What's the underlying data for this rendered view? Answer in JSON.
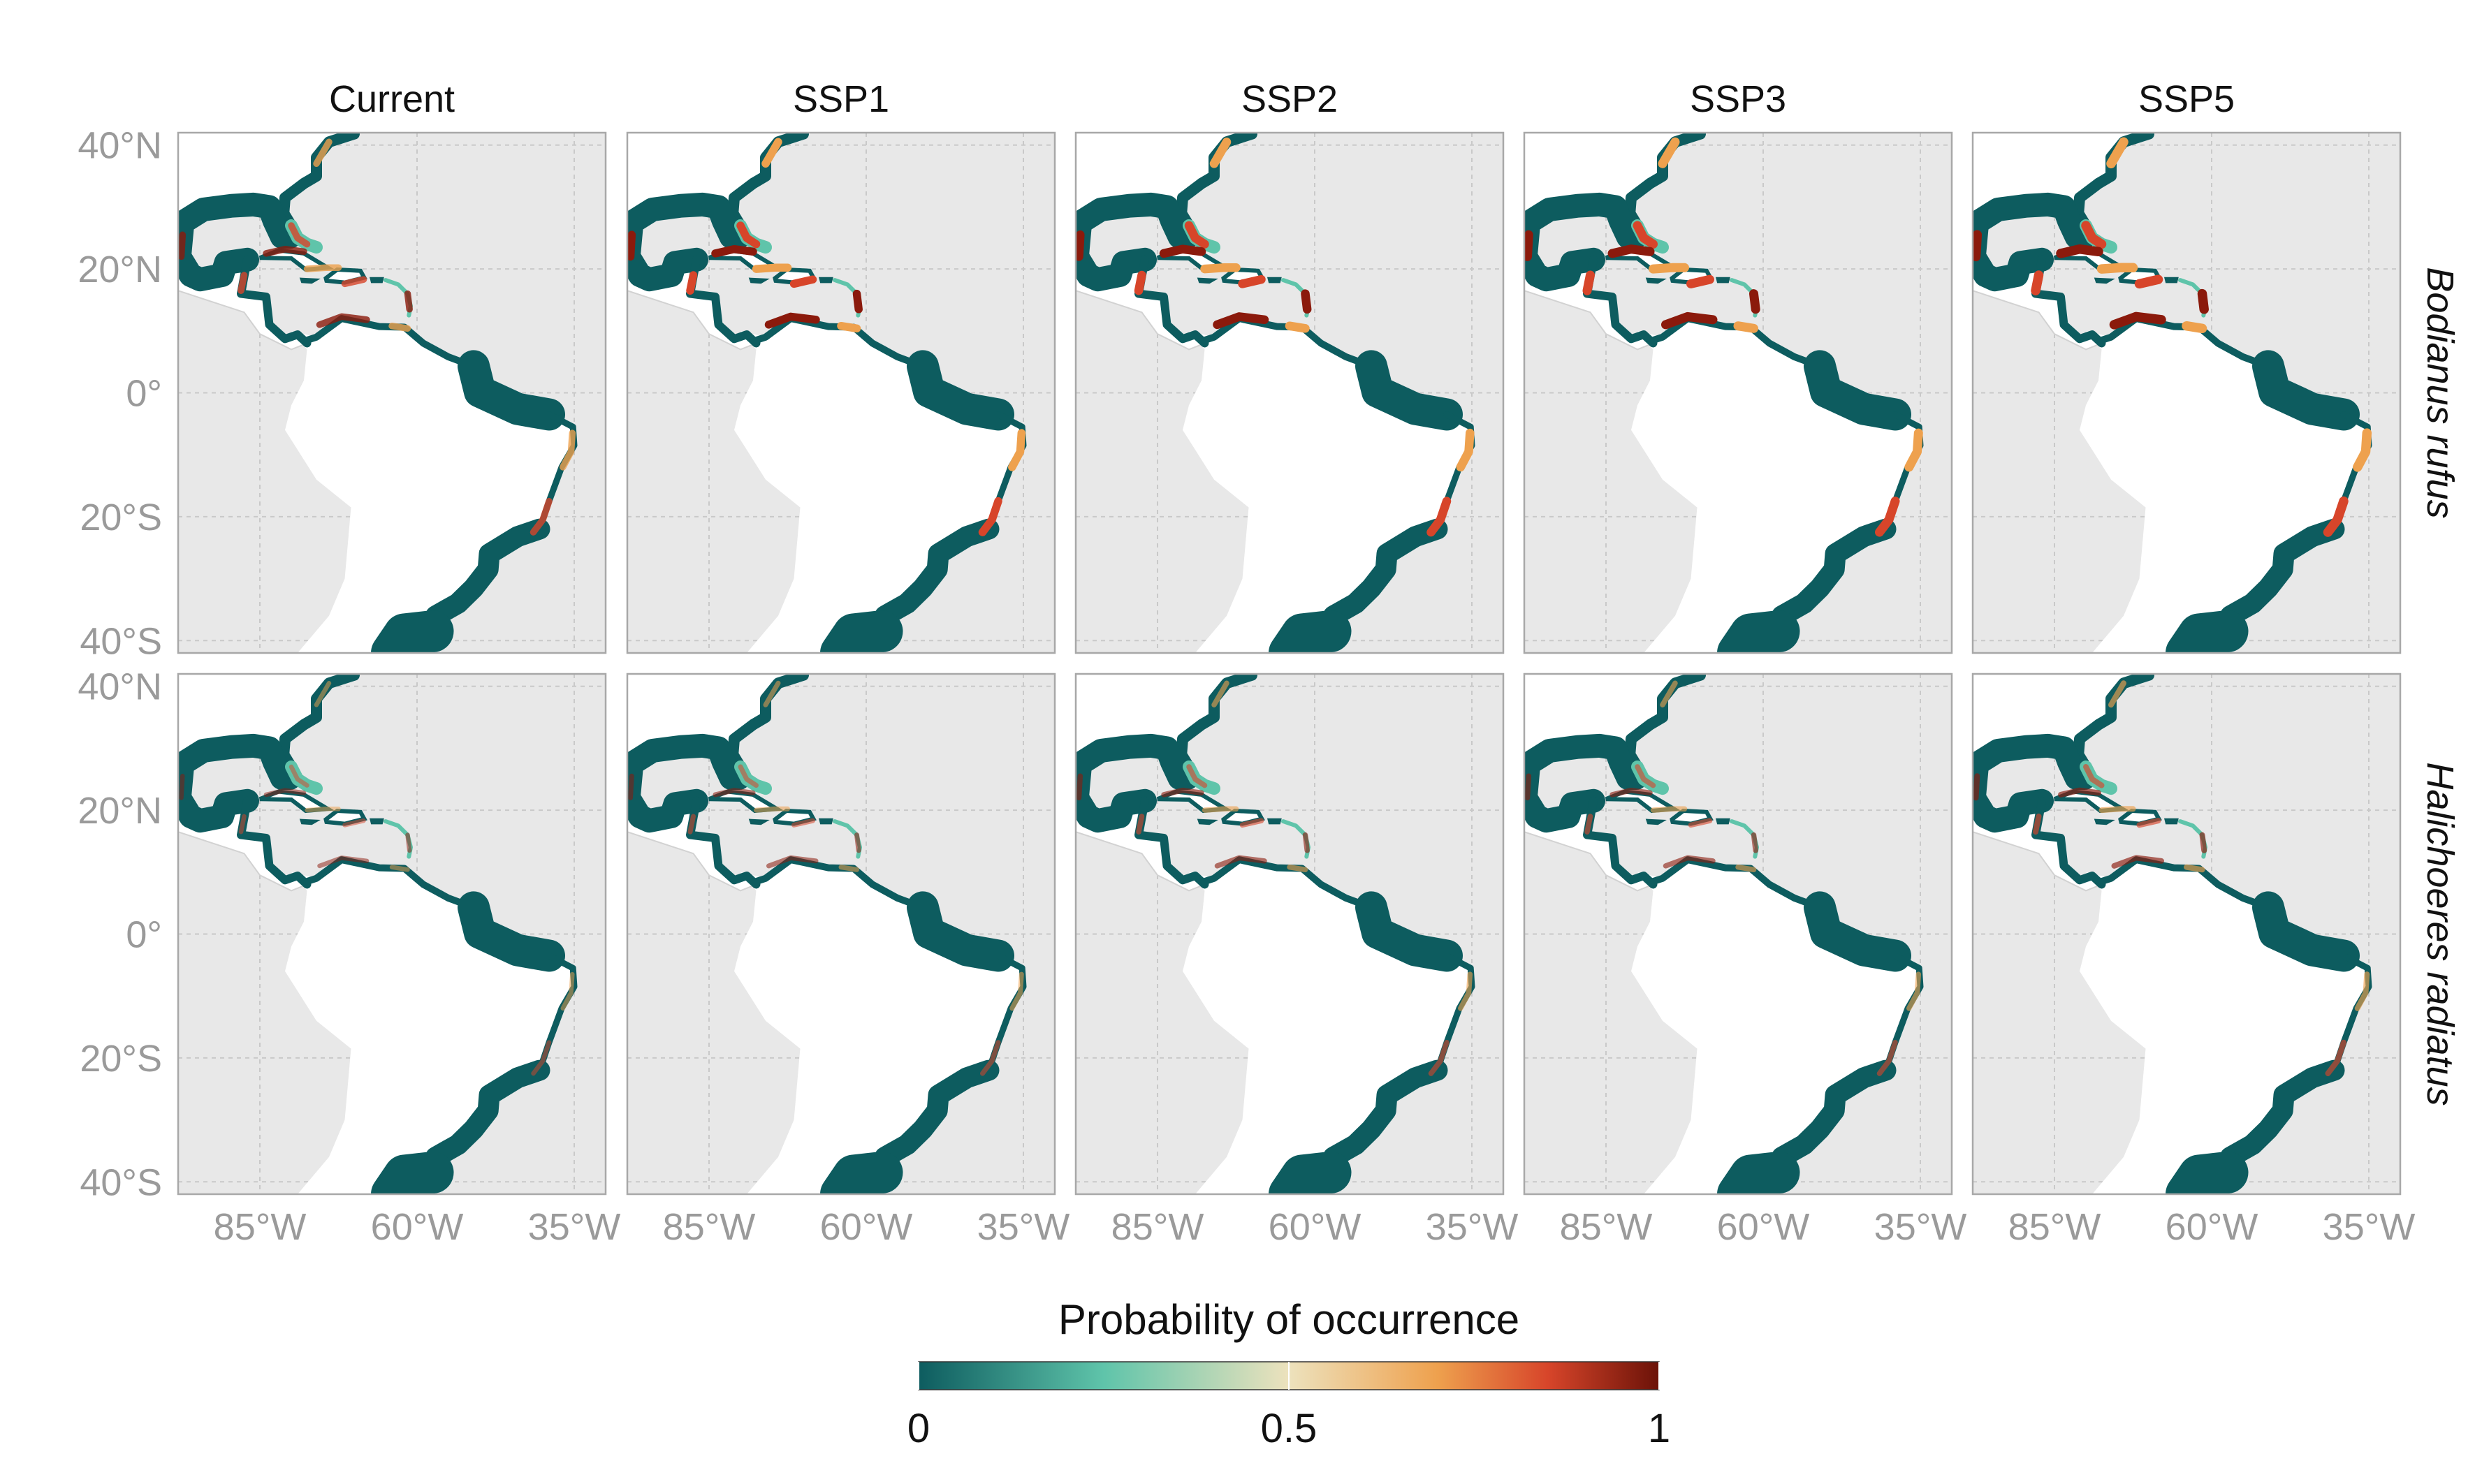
{
  "columns": [
    "Current",
    "SSP1",
    "SSP2",
    "SSP3",
    "SSP5"
  ],
  "rows": [
    "Bodianus rufus",
    "Halichoeres radiatus"
  ],
  "lat_ticks": [
    {
      "value": 40,
      "label": "40°N"
    },
    {
      "value": 20,
      "label": "20°N"
    },
    {
      "value": 0,
      "label": "0°"
    },
    {
      "value": -20,
      "label": "20°S"
    },
    {
      "value": -40,
      "label": "40°S"
    }
  ],
  "lon_ticks": [
    {
      "value": -85,
      "label": "85°W"
    },
    {
      "value": -60,
      "label": "60°W"
    },
    {
      "value": -35,
      "label": "35°W"
    }
  ],
  "map_extent": {
    "lon": [
      -98,
      -30
    ],
    "lat": [
      -42,
      42
    ]
  },
  "legend": {
    "title": "Probability of occurrence",
    "ticks": [
      {
        "value": 0,
        "label": "0"
      },
      {
        "value": 0.5,
        "label": "0.5"
      },
      {
        "value": 1,
        "label": "1"
      }
    ],
    "colors": [
      "#0d5c5f",
      "#5fc4aa",
      "#ede2bd",
      "#eea14e",
      "#d7452a",
      "#6b1208"
    ]
  },
  "colors": {
    "ocean": "#e8e8e8",
    "land": "#ffffff",
    "frame": "#a8a8a8",
    "low": "#0d5c5f",
    "mid": "#5fc4aa",
    "high": "#d7452a",
    "max": "#8b1a0c"
  },
  "hotspot_intensity": [
    [
      0.55,
      0.75,
      0.85,
      0.9,
      0.95
    ],
    [
      0.25,
      0.3,
      0.35,
      0.35,
      0.4
    ]
  ]
}
